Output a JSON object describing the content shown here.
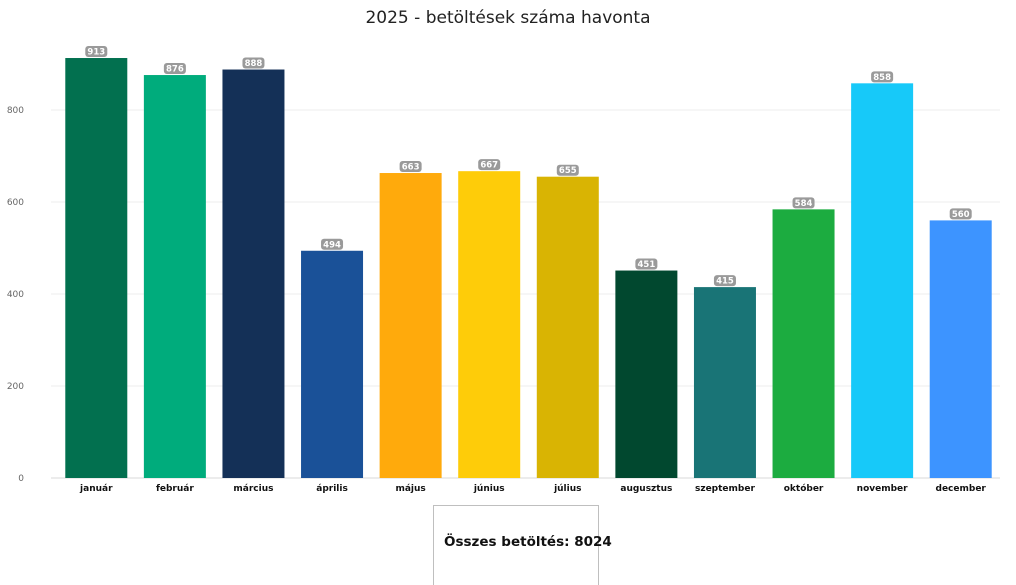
{
  "chart_data": {
    "type": "bar",
    "title": "2025 - betöltések száma havonta",
    "categories": [
      "január",
      "február",
      "március",
      "április",
      "május",
      "június",
      "július",
      "augusztus",
      "szeptember",
      "október",
      "november",
      "december"
    ],
    "values": [
      913,
      876,
      888,
      494,
      663,
      667,
      655,
      451,
      415,
      584,
      858,
      560
    ],
    "colors": [
      "#02704F",
      "#00AC7C",
      "#143057",
      "#1A5198",
      "#FFAA0C",
      "#FECC09",
      "#D9B403",
      "#01482F",
      "#197476",
      "#1CAC40",
      "#17C9F9",
      "#3D94FF"
    ],
    "ylim": [
      0,
      1000
    ],
    "yticks": [
      0,
      200,
      400,
      600,
      800
    ],
    "grid": true,
    "data_labels": true,
    "xlabel": "",
    "ylabel": ""
  },
  "summary": {
    "total_label": "Összes betöltés: 8024"
  }
}
